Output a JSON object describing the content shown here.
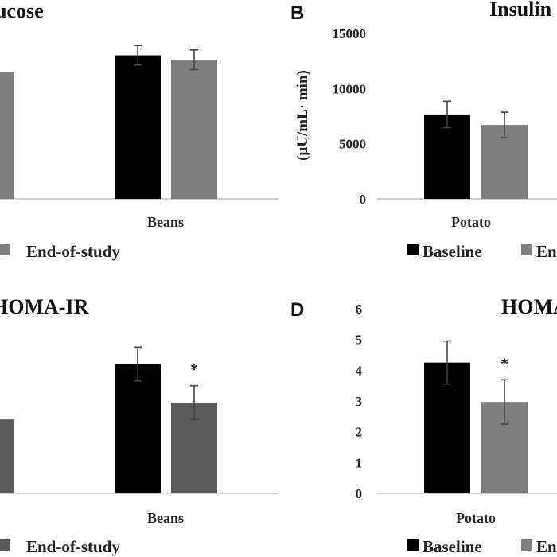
{
  "colors": {
    "baseline": "#000000",
    "end_of_study_light": "#7f7f7f",
    "end_of_study_dark": "#595959"
  },
  "chart_data": [
    {
      "panel": "A",
      "type": "bar",
      "title": "ucose",
      "letter": "",
      "ylabel": "",
      "categories": [
        "",
        "Beans"
      ],
      "ylim": [
        0,
        12000
      ],
      "yticks": [],
      "bar_color_end": "#7f7f7f",
      "series": [
        {
          "name": "Baseline",
          "values": [
            null,
            9500
          ],
          "errors": [
            null,
            650
          ]
        },
        {
          "name": "End-of-study",
          "values": [
            8400,
            9200
          ],
          "errors": [
            null,
            650
          ]
        }
      ],
      "annotations": [],
      "legend": [
        "",
        "End-of-study"
      ]
    },
    {
      "panel": "B",
      "type": "bar",
      "title": "Insulin",
      "letter": "B",
      "ylabel": "(μU/mL· min)",
      "categories": [
        "Potato"
      ],
      "ylim": [
        0,
        15000
      ],
      "yticks": [
        "0",
        "5000",
        "10000",
        "15000"
      ],
      "bar_color_end": "#7f7f7f",
      "series": [
        {
          "name": "Baseline",
          "values": [
            7650
          ],
          "errors": [
            1200
          ]
        },
        {
          "name": "End-of-study",
          "values": [
            6700
          ],
          "errors": [
            1150
          ]
        }
      ],
      "annotations": [],
      "legend": [
        "Baseline",
        "En"
      ]
    },
    {
      "panel": "C",
      "type": "bar",
      "title": "HOMA-IR",
      "letter": "",
      "ylabel": "",
      "categories": [
        "",
        "Beans"
      ],
      "ylim": [
        0,
        6
      ],
      "yticks": [],
      "bar_color_end": "#595959",
      "series": [
        {
          "name": "Baseline",
          "values": [
            null,
            4.2
          ],
          "errors": [
            null,
            0.55
          ]
        },
        {
          "name": "End-of-study",
          "values": [
            2.4,
            2.95
          ],
          "errors": [
            null,
            0.55
          ]
        }
      ],
      "annotations": [
        {
          "category_index": 1,
          "series_index": 1,
          "text": "*"
        }
      ],
      "legend": [
        "",
        "End-of-study"
      ]
    },
    {
      "panel": "D",
      "type": "bar",
      "title": "HOMA",
      "letter": "D",
      "ylabel": "",
      "categories": [
        "Potato"
      ],
      "ylim": [
        0,
        6
      ],
      "yticks": [
        "0",
        "1",
        "2",
        "3",
        "4",
        "5",
        "6"
      ],
      "bar_color_end": "#7f7f7f",
      "series": [
        {
          "name": "Baseline",
          "values": [
            4.25
          ],
          "errors": [
            0.7
          ]
        },
        {
          "name": "End-of-study",
          "values": [
            2.97
          ],
          "errors": [
            0.72
          ]
        }
      ],
      "annotations": [
        {
          "category_index": 0,
          "series_index": 1,
          "text": "*"
        }
      ],
      "legend": [
        "Baseline",
        "En"
      ]
    }
  ]
}
